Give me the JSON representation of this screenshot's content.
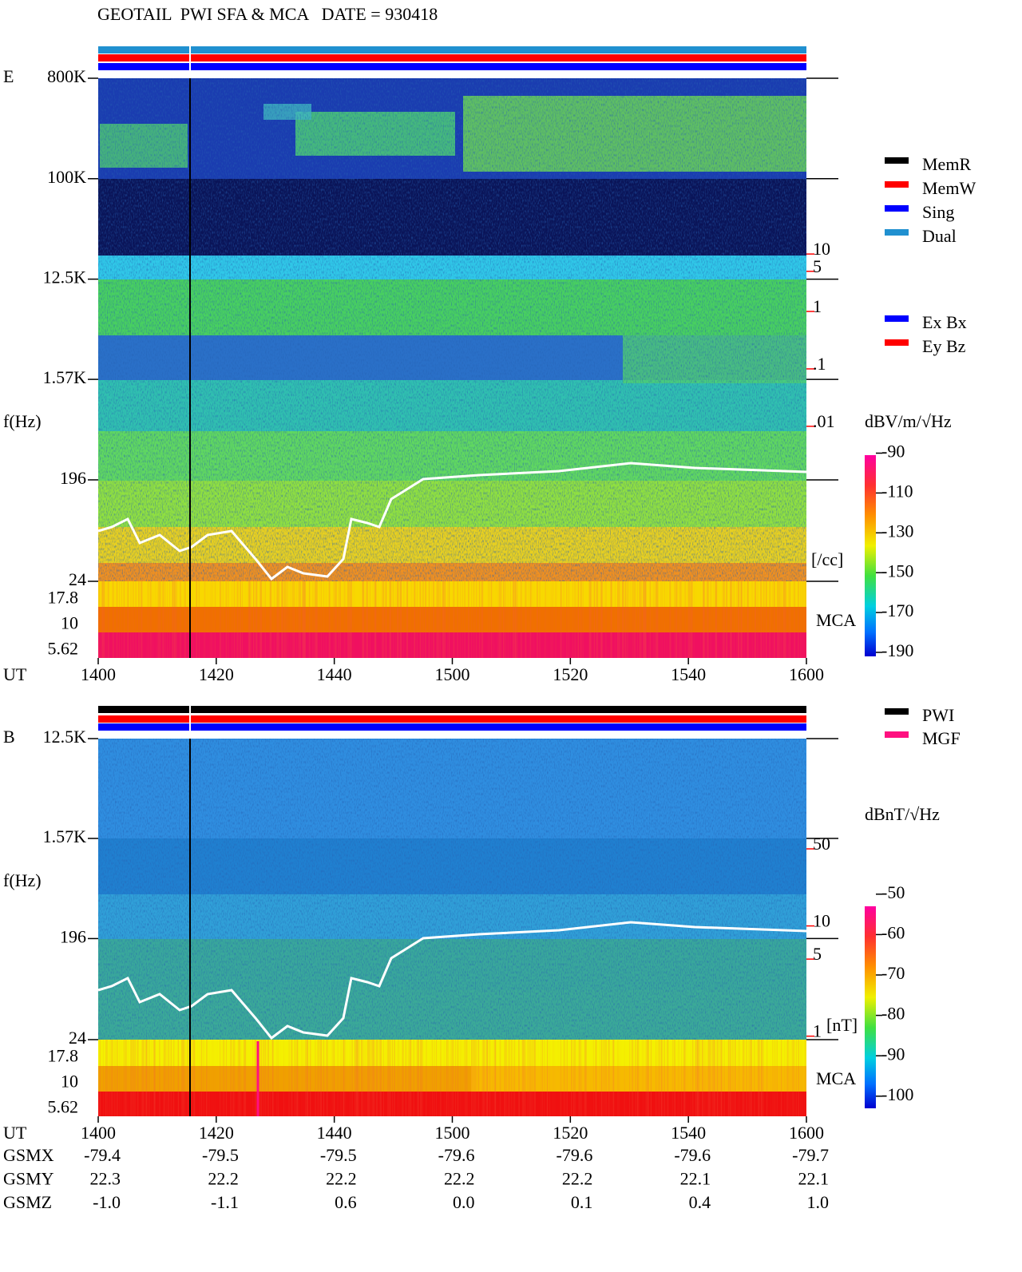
{
  "title": "GEOTAIL  PWI SFA & MCA   DATE = 930418",
  "chart_data": [
    {
      "type": "spectrogram",
      "panel_label": "E",
      "y_label": "f(Hz)",
      "x_label": "UT",
      "ylog": true,
      "ylim": [
        24,
        800000
      ],
      "yticks": [
        {
          "value": 800000,
          "label": "800K"
        },
        {
          "value": 100000,
          "label": "100K"
        },
        {
          "value": 12500,
          "label": "12.5K"
        },
        {
          "value": 1570,
          "label": "1.57K"
        },
        196,
        24
      ],
      "categories": [
        "1400",
        "1420",
        "1440",
        "1500",
        "1520",
        "1540",
        "1600"
      ],
      "mca_label": "MCA",
      "mca_ticks": [
        17.8,
        10,
        5.62
      ],
      "y2log": true,
      "y2lim": [
        2e-05,
        11500
      ],
      "y2ticks": [
        10,
        5,
        1,
        {
          "value": 0.1,
          "label": ".1"
        },
        {
          "value": 0.01,
          "label": ".01"
        }
      ],
      "y2_label": "[/cc]",
      "y2_color": "#ff0000",
      "colorbar": {
        "label": "dBV/m/√Hz",
        "clim": [
          -192,
          -91
        ],
        "ticks": [
          -90,
          -110,
          -130,
          -150,
          -170,
          -190
        ]
      },
      "legend": [
        {
          "name": "MemR",
          "color": "#000000"
        },
        {
          "name": "MemW",
          "color": "#ff0000"
        },
        {
          "name": "Sing",
          "color": "#0000ff"
        },
        {
          "name": "Dual",
          "color": "#2090d0"
        }
      ],
      "legend2": [
        {
          "name": "Ex Bx",
          "color": "#0000ff"
        },
        {
          "name": "Ey Bz",
          "color": "#ff0000"
        }
      ]
    },
    {
      "type": "spectrogram",
      "panel_label": "B",
      "y_label": "f(Hz)",
      "x_label": "UT",
      "ylog": true,
      "ylim": [
        24,
        12500
      ],
      "yticks": [
        {
          "value": 12500,
          "label": "12.5K"
        },
        {
          "value": 1570,
          "label": "1.57K"
        },
        196,
        24
      ],
      "categories": [
        "1400",
        "1420",
        "1440",
        "1500",
        "1520",
        "1540",
        "1600"
      ],
      "mca_label": "MCA",
      "mca_ticks": [
        17.8,
        10,
        5.62
      ],
      "y2log": true,
      "y2lim": [
        0.93,
        500
      ],
      "y2ticks": [
        50,
        10,
        5,
        1
      ],
      "y2_label": "[nT]",
      "y2_color": "#ff0000",
      "colorbar": {
        "label": "dBnT/√Hz",
        "clim": [
          -103,
          -53
        ],
        "ticks": [
          -50,
          -60,
          -70,
          -80,
          -90,
          -100
        ]
      },
      "legend": [
        {
          "name": "PWI",
          "color": "#000000"
        },
        {
          "name": "MGF",
          "color": "#ff1080"
        }
      ]
    }
  ],
  "orbit": {
    "rows": [
      {
        "label": "GSMX",
        "values": [
          "-79.4",
          "-79.5",
          "-79.5",
          "-79.6",
          "-79.6",
          "-79.6",
          "-79.7"
        ]
      },
      {
        "label": "GSMY",
        "values": [
          "22.3",
          "22.2",
          "22.2",
          "22.2",
          "22.2",
          "22.1",
          "22.1"
        ]
      },
      {
        "label": "GSMZ",
        "values": [
          "-1.0",
          "-1.1",
          "0.6",
          "0.0",
          "0.1",
          "0.4",
          "1.0"
        ]
      }
    ]
  }
}
